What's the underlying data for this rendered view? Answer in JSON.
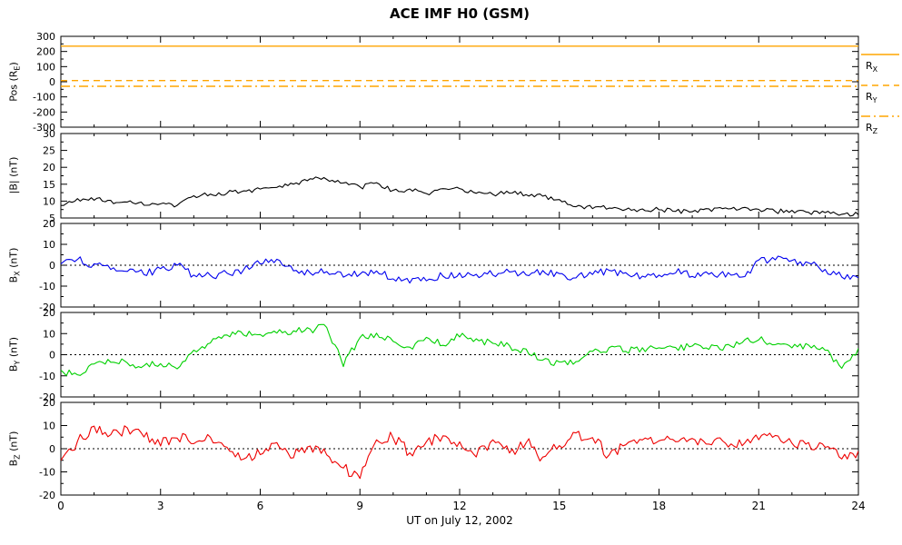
{
  "chart_data": {
    "type": "line",
    "title": "ACE IMF H0 (GSM)",
    "xlabel": "UT on July 12, 2002",
    "x_range": [
      0,
      24
    ],
    "x_ticks": [
      0,
      3,
      6,
      9,
      12,
      15,
      18,
      21,
      24
    ],
    "x_minor_step": 1,
    "grid": false,
    "legend_position": "right-of-top-panel",
    "x": [
      0,
      0.5,
      1,
      1.5,
      2,
      2.5,
      3,
      3.5,
      4,
      4.5,
      5,
      5.5,
      6,
      6.5,
      7,
      7.5,
      8,
      8.5,
      9,
      9.5,
      10,
      10.5,
      11,
      11.5,
      12,
      12.5,
      13,
      13.5,
      14,
      14.5,
      15,
      15.5,
      16,
      16.5,
      17,
      17.5,
      18,
      18.5,
      19,
      19.5,
      20,
      20.5,
      21,
      21.5,
      22,
      22.5,
      23,
      23.5,
      24
    ],
    "panels": [
      {
        "ylabel": "Pos (R_E)",
        "ylabel_pre": "Pos (R",
        "ylabel_sub": "E",
        "ylabel_post": ")",
        "y_range": [
          -300,
          300
        ],
        "y_ticks": [
          300,
          200,
          100,
          0,
          -100,
          -200,
          -300
        ],
        "zero_line": false,
        "series": [
          {
            "name": "R_X",
            "color": "#FFA500",
            "style": "solid",
            "constant": 235
          },
          {
            "name": "R_Y",
            "color": "#FFA500",
            "style": "dashed",
            "constant": 8
          },
          {
            "name": "R_Z",
            "color": "#FFA500",
            "style": "dashdot",
            "constant": -30
          }
        ]
      },
      {
        "ylabel": "|B| (nT)",
        "ylabel_pre": "|B| (nT)",
        "ylabel_sub": "",
        "ylabel_post": "",
        "y_range": [
          5,
          30
        ],
        "y_ticks": [
          30,
          25,
          20,
          15,
          10,
          5
        ],
        "zero_line": false,
        "series": [
          {
            "name": "|B|",
            "color": "#000000",
            "style": "noisy",
            "noise": 0.7,
            "values": [
              8.5,
              10.5,
              10.5,
              10,
              9.5,
              9,
              9,
              8.5,
              11.5,
              12,
              12.5,
              13,
              13.5,
              14,
              15,
              16.5,
              16.5,
              15.5,
              14,
              15.5,
              13,
              13.5,
              12,
              13.5,
              13.5,
              12.5,
              12,
              12.5,
              12,
              11.5,
              10.5,
              8.5,
              8,
              8,
              7.5,
              7.5,
              7.5,
              7,
              7,
              7.5,
              8,
              8,
              7.5,
              7,
              7,
              6.5,
              6.5,
              6,
              6
            ]
          }
        ]
      },
      {
        "ylabel": "B_X (nT)",
        "ylabel_pre": "B",
        "ylabel_sub": "X",
        "ylabel_post": " (nT)",
        "y_range": [
          -20,
          20
        ],
        "y_ticks": [
          20,
          10,
          0,
          -10,
          -20
        ],
        "zero_line": true,
        "series": [
          {
            "name": "B_X",
            "color": "#0000EE",
            "style": "noisy",
            "noise": 1.8,
            "values": [
              1,
              3,
              0,
              -2,
              -3,
              -4,
              -2,
              0,
              -5,
              -5,
              -4,
              -2,
              1,
              3,
              -2,
              -4,
              -3,
              -5,
              -4,
              -3,
              -6,
              -8,
              -7,
              -5,
              -4,
              -5,
              -4,
              -3,
              -4,
              -3,
              -4,
              -6,
              -4,
              -3,
              -4,
              -5,
              -4,
              -3,
              -5,
              -4,
              -5,
              -6,
              2,
              3,
              2,
              1,
              -2,
              -5,
              -6
            ]
          }
        ]
      },
      {
        "ylabel": "B_Y (nT)",
        "ylabel_pre": "B",
        "ylabel_sub": "Y",
        "ylabel_post": " (nT)",
        "y_range": [
          -20,
          20
        ],
        "y_ticks": [
          20,
          10,
          0,
          -10,
          -20
        ],
        "zero_line": true,
        "series": [
          {
            "name": "B_Y",
            "color": "#00D000",
            "style": "noisy",
            "noise": 1.8,
            "values": [
              -8,
              -9,
              -4,
              -3,
              -4,
              -5,
              -4,
              -7,
              2,
              6,
              9,
              10,
              9,
              10,
              11,
              12,
              13,
              -5,
              8,
              10,
              6,
              3,
              8,
              5,
              9,
              7,
              5,
              4,
              2,
              -2,
              -4,
              -3,
              2,
              3,
              2,
              3,
              4,
              3,
              4,
              3,
              4,
              6,
              7,
              5,
              3,
              4,
              2,
              -6,
              3
            ]
          }
        ]
      },
      {
        "ylabel": "B_Z (nT)",
        "ylabel_pre": "B",
        "ylabel_sub": "Z",
        "ylabel_post": " (nT)",
        "y_range": [
          -20,
          20
        ],
        "y_ticks": [
          20,
          10,
          0,
          -10,
          -20
        ],
        "zero_line": true,
        "series": [
          {
            "name": "B_Z",
            "color": "#EE0000",
            "style": "noisy",
            "noise": 2.5,
            "values": [
              -5,
              3,
              9,
              7,
              8,
              6,
              2,
              5,
              3,
              4,
              1,
              -4,
              -2,
              2,
              -3,
              1,
              -2,
              -8,
              -13,
              3,
              5,
              -2,
              3,
              6,
              2,
              -3,
              4,
              -2,
              3,
              -4,
              2,
              6,
              5,
              -3,
              2,
              4,
              4,
              3,
              4,
              2,
              3,
              2,
              4,
              5,
              3,
              2,
              1,
              -4,
              -1
            ]
          }
        ]
      }
    ],
    "legend": [
      {
        "pre": "R",
        "sub": "X",
        "style": "solid",
        "color": "#FFA500"
      },
      {
        "pre": "R",
        "sub": "Y",
        "style": "dashed",
        "color": "#FFA500"
      },
      {
        "pre": "R",
        "sub": "Z",
        "style": "dashdot",
        "color": "#FFA500"
      }
    ]
  }
}
